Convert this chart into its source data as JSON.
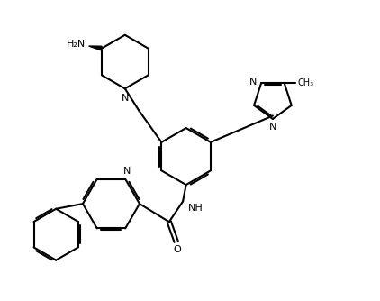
{
  "bg": "#ffffff",
  "lc": "#000000",
  "lw": 1.5,
  "fs": 8.0,
  "figsize": [
    4.22,
    3.34
  ],
  "dpi": 100,
  "xlim": [
    0,
    10
  ],
  "ylim": [
    0,
    8
  ]
}
